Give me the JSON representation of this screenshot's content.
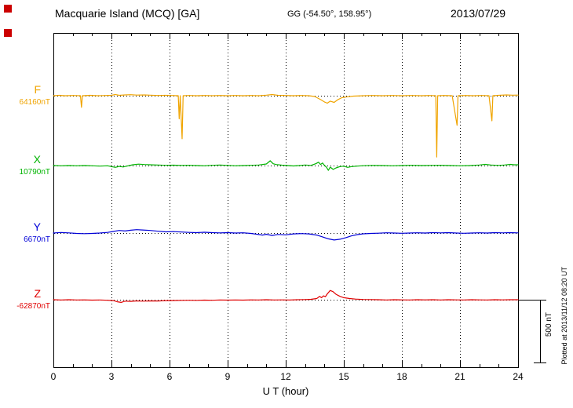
{
  "header": {
    "title": "Macquarie Island (MCQ)  [GA]",
    "coords": "GG (-54.50°, 158.95°)",
    "date": "2013/07/29"
  },
  "side": {
    "scale_label": "500 nT",
    "plotted_at": "Plotted at 2013/11/12 08:20 UT"
  },
  "chart_data": {
    "type": "line",
    "title": "Macquarie Island (MCQ)  [GA]",
    "subtitle": "GG (-54.50°, 158.95°)",
    "date": "2013/07/29",
    "xlabel": "U T (hour)",
    "x_range": [
      0,
      24
    ],
    "x_ticks": [
      0,
      3,
      6,
      9,
      12,
      15,
      18,
      21,
      24
    ],
    "grid": "dotted vertical lines at 3-hour ticks; dotted horizontal line at each trace baseline",
    "scale_bar_nT": 500,
    "legend_position": "left",
    "series": [
      {
        "name": "F",
        "baseline_label": "64160nT",
        "baseline_nT": 64160,
        "color": "#f0a400",
        "points": [
          [
            0,
            0
          ],
          [
            0.3,
            3
          ],
          [
            0.6,
            0
          ],
          [
            1,
            2
          ],
          [
            1.4,
            0
          ],
          [
            1.45,
            -90
          ],
          [
            1.5,
            0
          ],
          [
            1.9,
            3
          ],
          [
            2.3,
            0
          ],
          [
            2.7,
            2
          ],
          [
            3,
            3
          ],
          [
            3.2,
            10
          ],
          [
            3.4,
            3
          ],
          [
            3.7,
            6
          ],
          [
            4,
            8
          ],
          [
            4.3,
            5
          ],
          [
            4.7,
            6
          ],
          [
            5,
            4
          ],
          [
            5.4,
            2
          ],
          [
            5.8,
            3
          ],
          [
            6.1,
            2
          ],
          [
            6.45,
            0
          ],
          [
            6.5,
            -180
          ],
          [
            6.55,
            0
          ],
          [
            6.65,
            -335
          ],
          [
            6.7,
            0
          ],
          [
            7,
            2
          ],
          [
            7.4,
            0
          ],
          [
            7.8,
            2
          ],
          [
            8.2,
            0
          ],
          [
            8.6,
            2
          ],
          [
            9,
            0
          ],
          [
            9.4,
            2
          ],
          [
            9.8,
            0
          ],
          [
            10.2,
            2
          ],
          [
            10.6,
            0
          ],
          [
            11,
            4
          ],
          [
            11.3,
            9
          ],
          [
            11.6,
            3
          ],
          [
            12,
            2
          ],
          [
            12.4,
            0
          ],
          [
            12.8,
            2
          ],
          [
            13.2,
            0
          ],
          [
            13.5,
            -6
          ],
          [
            13.8,
            -30
          ],
          [
            14,
            -48
          ],
          [
            14.15,
            -58
          ],
          [
            14.3,
            -42
          ],
          [
            14.5,
            -52
          ],
          [
            14.7,
            -30
          ],
          [
            14.9,
            -15
          ],
          [
            15.2,
            -8
          ],
          [
            15.5,
            -3
          ],
          [
            16,
            0
          ],
          [
            16.5,
            2
          ],
          [
            17,
            0
          ],
          [
            17.5,
            2
          ],
          [
            18,
            0
          ],
          [
            18.5,
            2
          ],
          [
            19,
            0
          ],
          [
            19.4,
            2
          ],
          [
            19.75,
            0
          ],
          [
            19.8,
            -476
          ],
          [
            19.85,
            0
          ],
          [
            20.2,
            2
          ],
          [
            20.6,
            0
          ],
          [
            20.85,
            -230
          ],
          [
            20.9,
            0
          ],
          [
            21.3,
            2
          ],
          [
            21.7,
            0
          ],
          [
            22.1,
            2
          ],
          [
            22.5,
            0
          ],
          [
            22.65,
            -195
          ],
          [
            22.7,
            0
          ],
          [
            23,
            3
          ],
          [
            23.4,
            6
          ],
          [
            23.7,
            4
          ],
          [
            24,
            5
          ]
        ]
      },
      {
        "name": "X",
        "baseline_label": "10790nT",
        "baseline_nT": 10790,
        "color": "#00b400",
        "points": [
          [
            0,
            0
          ],
          [
            0.4,
            -2
          ],
          [
            0.8,
            0
          ],
          [
            1.2,
            -2
          ],
          [
            1.6,
            0
          ],
          [
            2,
            -2
          ],
          [
            2.4,
            -4
          ],
          [
            2.8,
            -2
          ],
          [
            3,
            -8
          ],
          [
            3.2,
            -14
          ],
          [
            3.4,
            -6
          ],
          [
            3.6,
            -11
          ],
          [
            3.8,
            -4
          ],
          [
            4.1,
            6
          ],
          [
            4.4,
            11
          ],
          [
            4.7,
            8
          ],
          [
            5,
            6
          ],
          [
            5.4,
            4
          ],
          [
            5.8,
            2
          ],
          [
            6.2,
            3
          ],
          [
            6.6,
            1
          ],
          [
            7,
            2
          ],
          [
            7.4,
            0
          ],
          [
            7.8,
            -2
          ],
          [
            8.2,
            2
          ],
          [
            8.6,
            4
          ],
          [
            9,
            1
          ],
          [
            9.4,
            -2
          ],
          [
            9.8,
            0
          ],
          [
            10.2,
            2
          ],
          [
            10.6,
            4
          ],
          [
            11,
            12
          ],
          [
            11.2,
            37
          ],
          [
            11.35,
            14
          ],
          [
            11.5,
            8
          ],
          [
            11.8,
            3
          ],
          [
            12.1,
            0
          ],
          [
            12.4,
            -3
          ],
          [
            12.7,
            0
          ],
          [
            13,
            4
          ],
          [
            13.3,
            1
          ],
          [
            13.55,
            14
          ],
          [
            13.7,
            26
          ],
          [
            13.8,
            8
          ],
          [
            13.9,
            20
          ],
          [
            14,
            2
          ],
          [
            14.1,
            -12
          ],
          [
            14.2,
            -37
          ],
          [
            14.3,
            -12
          ],
          [
            14.45,
            -30
          ],
          [
            14.6,
            -18
          ],
          [
            14.8,
            -8
          ],
          [
            15,
            -5
          ],
          [
            15.2,
            -14
          ],
          [
            15.4,
            -8
          ],
          [
            15.7,
            -4
          ],
          [
            16,
            -1
          ],
          [
            16.5,
            1
          ],
          [
            17,
            0
          ],
          [
            17.5,
            -2
          ],
          [
            18,
            0
          ],
          [
            18.5,
            2
          ],
          [
            19,
            0
          ],
          [
            19.5,
            1
          ],
          [
            20,
            2
          ],
          [
            20.5,
            0
          ],
          [
            21,
            -2
          ],
          [
            21.5,
            0
          ],
          [
            22,
            4
          ],
          [
            22.3,
            9
          ],
          [
            22.6,
            4
          ],
          [
            23,
            1
          ],
          [
            23.3,
            4
          ],
          [
            23.6,
            9
          ],
          [
            23.8,
            6
          ],
          [
            24,
            6
          ]
        ]
      },
      {
        "name": "Y",
        "baseline_label": "6670nT",
        "baseline_nT": 6670,
        "color": "#0000d8",
        "points": [
          [
            0,
            0
          ],
          [
            0.4,
            4
          ],
          [
            0.8,
            1
          ],
          [
            1.2,
            -3
          ],
          [
            1.6,
            -5
          ],
          [
            2,
            -3
          ],
          [
            2.4,
            0
          ],
          [
            2.8,
            5
          ],
          [
            3.1,
            12
          ],
          [
            3.4,
            20
          ],
          [
            3.7,
            16
          ],
          [
            4,
            22
          ],
          [
            4.3,
            26
          ],
          [
            4.6,
            24
          ],
          [
            5,
            20
          ],
          [
            5.4,
            14
          ],
          [
            5.8,
            9
          ],
          [
            6.2,
            11
          ],
          [
            6.6,
            8
          ],
          [
            7,
            5
          ],
          [
            7.4,
            3
          ],
          [
            7.8,
            6
          ],
          [
            8.2,
            3
          ],
          [
            8.6,
            1
          ],
          [
            9,
            3
          ],
          [
            9.4,
            0
          ],
          [
            9.8,
            2
          ],
          [
            10.2,
            -3
          ],
          [
            10.5,
            -9
          ],
          [
            10.8,
            -16
          ],
          [
            11,
            -10
          ],
          [
            11.3,
            -19
          ],
          [
            11.6,
            -11
          ],
          [
            12,
            -14
          ],
          [
            12.4,
            -7
          ],
          [
            12.8,
            -4
          ],
          [
            13.2,
            -7
          ],
          [
            13.6,
            -16
          ],
          [
            13.9,
            -30
          ],
          [
            14.2,
            -45
          ],
          [
            14.5,
            -54
          ],
          [
            14.8,
            -48
          ],
          [
            15.1,
            -36
          ],
          [
            15.4,
            -22
          ],
          [
            15.7,
            -12
          ],
          [
            16,
            -6
          ],
          [
            16.4,
            -3
          ],
          [
            16.8,
            -1
          ],
          [
            17.2,
            2
          ],
          [
            17.6,
            0
          ],
          [
            18,
            -2
          ],
          [
            18.4,
            0
          ],
          [
            18.8,
            2
          ],
          [
            19.2,
            0
          ],
          [
            19.6,
            3
          ],
          [
            20,
            1
          ],
          [
            20.4,
            3
          ],
          [
            20.8,
            0
          ],
          [
            21.2,
            -2
          ],
          [
            21.6,
            0
          ],
          [
            22,
            2
          ],
          [
            22.4,
            0
          ],
          [
            22.8,
            3
          ],
          [
            23.2,
            1
          ],
          [
            23.6,
            3
          ],
          [
            24,
            1
          ]
        ]
      },
      {
        "name": "Z",
        "baseline_label": "-62870nT",
        "baseline_nT": -62870,
        "color": "#e00000",
        "points": [
          [
            0,
            0
          ],
          [
            0.4,
            -2
          ],
          [
            0.8,
            0
          ],
          [
            1.2,
            -2
          ],
          [
            1.6,
            -1
          ],
          [
            2,
            -3
          ],
          [
            2.4,
            -2
          ],
          [
            2.8,
            -4
          ],
          [
            3.1,
            -7
          ],
          [
            3.3,
            -16
          ],
          [
            3.5,
            -21
          ],
          [
            3.7,
            -11
          ],
          [
            4,
            -13
          ],
          [
            4.3,
            -9
          ],
          [
            4.6,
            -11
          ],
          [
            5,
            -9
          ],
          [
            5.4,
            -10
          ],
          [
            5.8,
            -7
          ],
          [
            6.2,
            -6
          ],
          [
            6.6,
            -5
          ],
          [
            7,
            -4
          ],
          [
            7.4,
            -5
          ],
          [
            7.8,
            -3
          ],
          [
            8.2,
            -4
          ],
          [
            8.6,
            -2
          ],
          [
            9,
            -3
          ],
          [
            9.4,
            -2
          ],
          [
            9.8,
            -3
          ],
          [
            10.2,
            -1
          ],
          [
            10.6,
            -2
          ],
          [
            11,
            0
          ],
          [
            11.4,
            -2
          ],
          [
            11.8,
            -1
          ],
          [
            12.2,
            -2
          ],
          [
            12.6,
            0
          ],
          [
            13,
            1
          ],
          [
            13.3,
            3
          ],
          [
            13.6,
            9
          ],
          [
            13.75,
            26
          ],
          [
            13.85,
            16
          ],
          [
            13.95,
            30
          ],
          [
            14.05,
            24
          ],
          [
            14.15,
            46
          ],
          [
            14.3,
            72
          ],
          [
            14.45,
            62
          ],
          [
            14.6,
            42
          ],
          [
            14.8,
            26
          ],
          [
            15,
            16
          ],
          [
            15.3,
            9
          ],
          [
            15.6,
            5
          ],
          [
            16,
            2
          ],
          [
            16.4,
            1
          ],
          [
            16.8,
            0
          ],
          [
            17.2,
            -2
          ],
          [
            17.6,
            0
          ],
          [
            18,
            -1
          ],
          [
            18.4,
            -2
          ],
          [
            18.8,
            0
          ],
          [
            19.2,
            -1
          ],
          [
            19.6,
            0
          ],
          [
            20,
            -2
          ],
          [
            20.4,
            0
          ],
          [
            20.8,
            -1
          ],
          [
            21.2,
            -2
          ],
          [
            21.6,
            0
          ],
          [
            22,
            -1
          ],
          [
            22.4,
            -2
          ],
          [
            22.8,
            0
          ],
          [
            23.2,
            -1
          ],
          [
            23.6,
            0
          ],
          [
            24,
            0
          ]
        ]
      }
    ]
  }
}
